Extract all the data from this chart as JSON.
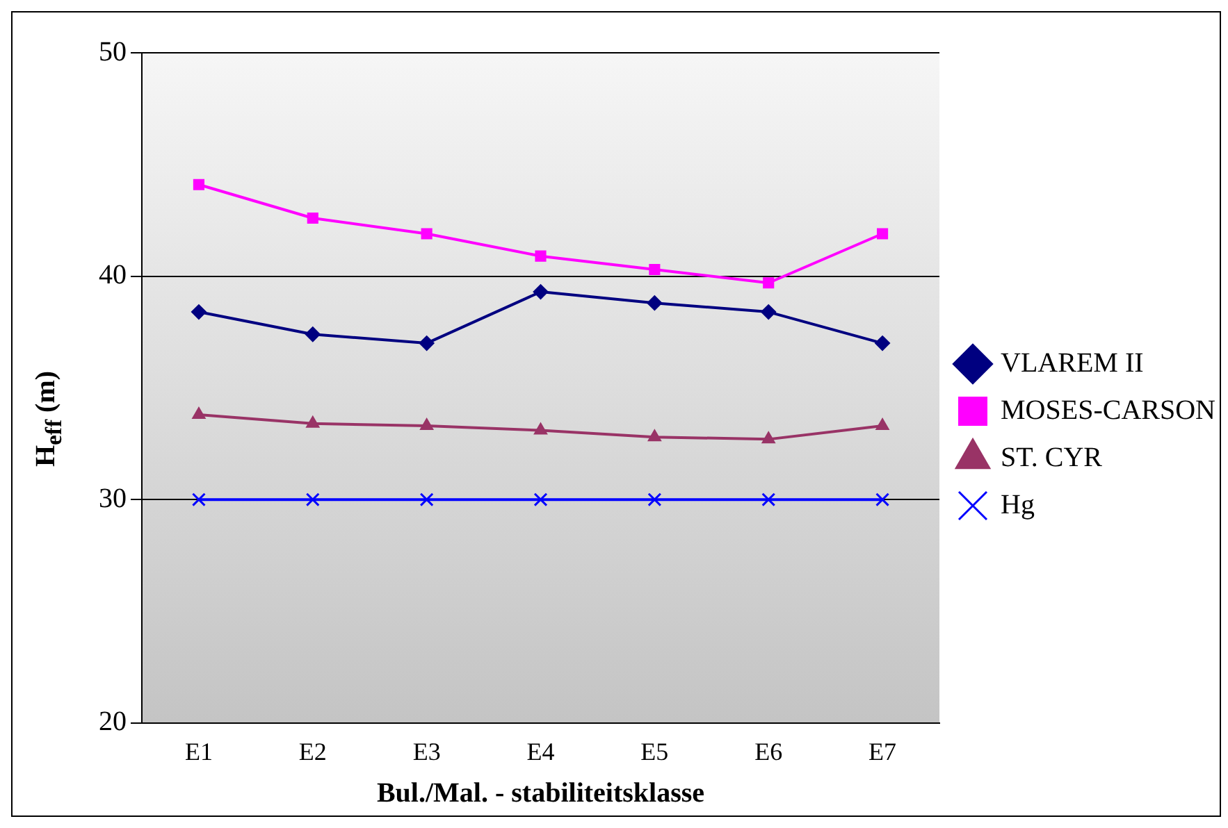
{
  "chart_data": {
    "type": "line",
    "xlabel": "Bul./Mal. - stabiliteitsklasse",
    "ylabel": "H$_{eff}$ (m)",
    "categories": [
      "E1",
      "E2",
      "E3",
      "E4",
      "E5",
      "E6",
      "E7"
    ],
    "series": [
      {
        "name": "VLAREM II",
        "color": "#000080",
        "marker": "diamond",
        "values": [
          38.4,
          37.4,
          37.0,
          39.3,
          38.8,
          38.4,
          37.0
        ]
      },
      {
        "name": "MOSES-CARSON",
        "color": "#ff00ff",
        "marker": "square",
        "values": [
          44.1,
          42.6,
          41.9,
          40.9,
          40.3,
          39.7,
          41.9
        ]
      },
      {
        "name": "ST. CYR",
        "color": "#993366",
        "marker": "triangle",
        "values": [
          33.8,
          33.4,
          33.3,
          33.1,
          32.8,
          32.7,
          33.3
        ]
      },
      {
        "name": "Hg",
        "color": "#0000ff",
        "marker": "cross",
        "values": [
          30,
          30,
          30,
          30,
          30,
          30,
          30
        ]
      }
    ],
    "ylim": [
      20,
      50
    ],
    "yticks": [
      20,
      30,
      40,
      50
    ],
    "grid": "y",
    "legend": "right"
  }
}
